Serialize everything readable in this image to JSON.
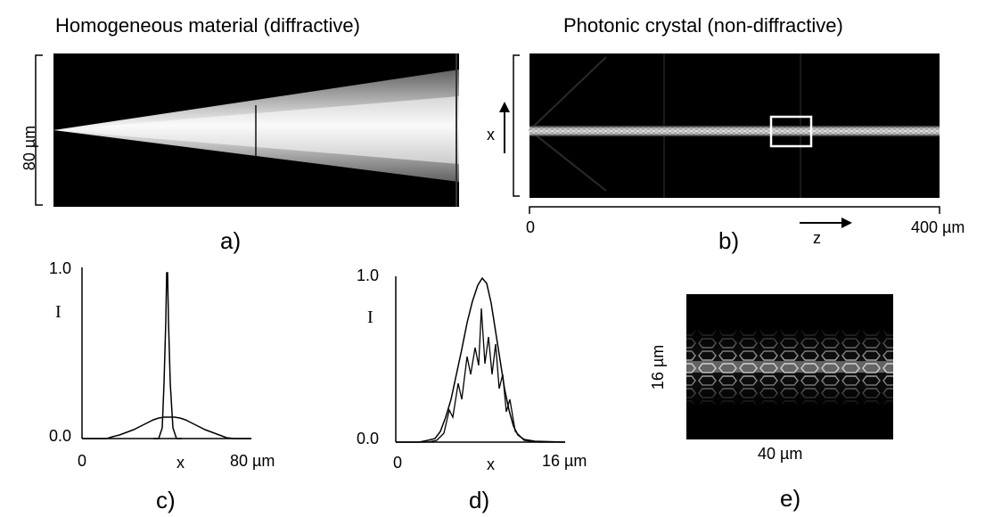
{
  "panel_a": {
    "title": "Homogeneous material (diffractive)",
    "label": "a)",
    "dimension_label": "80 µm"
  },
  "panel_b": {
    "title": "Photonic crystal (non-diffractive)",
    "label": "b)",
    "x_axis_label": "x",
    "z_axis_label": "z",
    "z_start": "0",
    "z_end": "400 µm"
  },
  "panel_c": {
    "label": "c)",
    "y_max": "1.0",
    "y_min": "0.0",
    "y_axis_label": "I",
    "x_start": "0",
    "x_axis_label": "x",
    "x_end": "80 µm"
  },
  "panel_d": {
    "label": "d)",
    "y_max": "1.0",
    "y_min": "0.0",
    "y_axis_label": "I",
    "x_start": "0",
    "x_axis_label": "x",
    "x_end": "16 µm"
  },
  "panel_e": {
    "label": "e)",
    "height_label": "16 µm",
    "width_label": "40 µm"
  }
}
